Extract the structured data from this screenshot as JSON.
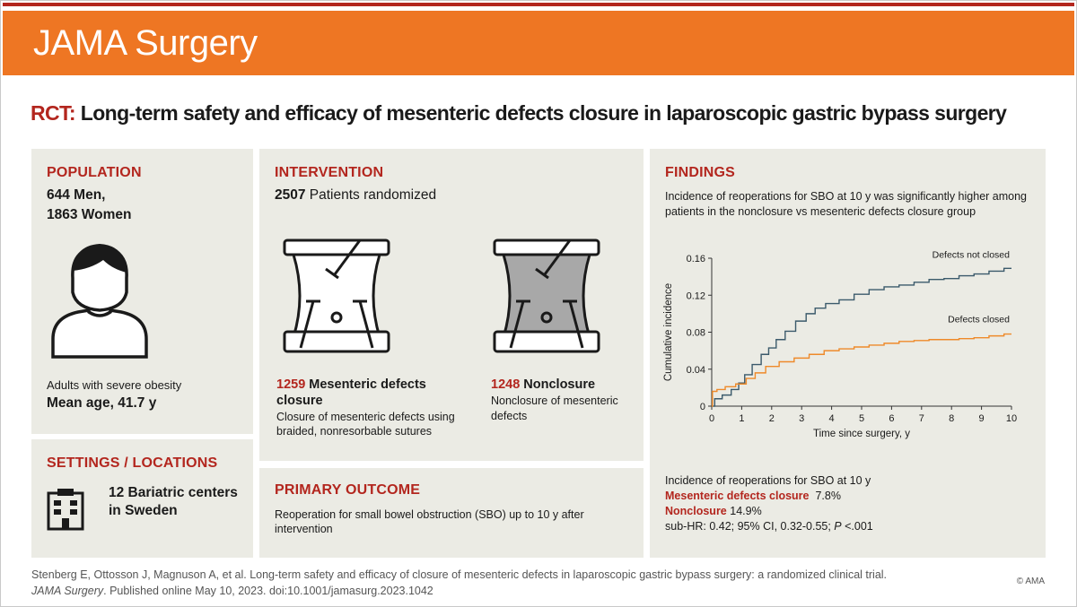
{
  "header": {
    "title": "JAMA Surgery"
  },
  "main_title": {
    "prefix": "RCT:",
    "text": " Long-term safety and efficacy of mesenteric defects closure in laparoscopic gastric bypass surgery"
  },
  "population": {
    "heading": "POPULATION",
    "men": "644 Men,",
    "women": "1863 Women",
    "description": "Adults with severe obesity",
    "mean_age": "Mean age, 41.7 y"
  },
  "settings": {
    "heading": "SETTINGS / LOCATIONS",
    "line1": "12 Bariatric centers",
    "line2": "in Sweden"
  },
  "intervention": {
    "heading": "INTERVENTION",
    "randomized_count": "2507",
    "randomized_text": " Patients randomized",
    "closure_count": "1259",
    "closure_label_a": " Mesenteric defects",
    "closure_label_b": "closure",
    "closure_desc_1": "Closure of mesenteric defects using",
    "closure_desc_2": "braided, nonresorbable sutures",
    "non_count": "1248",
    "non_label": " Nonclosure",
    "non_desc_1": "Nonclosure of mesenteric",
    "non_desc_2": "defects"
  },
  "primary_outcome": {
    "heading": "PRIMARY OUTCOME",
    "line1": "Reoperation for small bowel obstruction (SBO) up to 10 y after",
    "line2": "intervention"
  },
  "findings": {
    "heading": "FINDINGS",
    "summary_1": "Incidence of reoperations for SBO at 10 y was significantly higher among",
    "summary_2": "patients in the nonclosure vs mesenteric defects closure group",
    "result_title": "Incidence of reoperations for SBO at 10 y",
    "closure_label": "Mesenteric defects closure",
    "closure_value": "7.8%",
    "non_label": "Nonclosure",
    "non_value": "14.9%",
    "stats_a": "sub-HR: 0.42; 95% CI, 0.32-0.55; ",
    "stats_p": "P",
    "stats_b": " <.001"
  },
  "chart_data": {
    "type": "line",
    "xlabel": "Time since surgery, y",
    "ylabel": "Cumulative incidence",
    "xlim": [
      0,
      10
    ],
    "ylim": [
      0,
      0.16
    ],
    "xticks": [
      "0",
      "1",
      "2",
      "3",
      "4",
      "5",
      "6",
      "7",
      "8",
      "9",
      "10"
    ],
    "yticks": [
      "0",
      "0.04",
      "0.08",
      "0.12",
      "0.16"
    ],
    "series": [
      {
        "name": "Defects not closed",
        "color": "#3b5a6b",
        "x": [
          0,
          0.2,
          0.5,
          0.8,
          1.0,
          1.2,
          1.5,
          1.8,
          2.0,
          2.3,
          2.6,
          3.0,
          3.3,
          3.6,
          4.0,
          4.5,
          5.0,
          5.5,
          6.0,
          6.5,
          7.0,
          7.5,
          8.0,
          8.5,
          9.0,
          9.5,
          10.0
        ],
        "values": [
          0.0,
          0.008,
          0.012,
          0.018,
          0.025,
          0.034,
          0.045,
          0.056,
          0.063,
          0.072,
          0.081,
          0.092,
          0.1,
          0.106,
          0.111,
          0.115,
          0.121,
          0.126,
          0.129,
          0.131,
          0.134,
          0.137,
          0.138,
          0.141,
          0.143,
          0.146,
          0.149
        ]
      },
      {
        "name": "Defects closed",
        "color": "#ee8a2a",
        "x": [
          0,
          0.05,
          0.3,
          0.6,
          1.0,
          1.3,
          1.6,
          2.0,
          2.5,
          3.0,
          3.5,
          4.0,
          4.5,
          5.0,
          5.5,
          6.0,
          6.5,
          7.0,
          7.5,
          8.0,
          8.5,
          9.0,
          9.5,
          10.0
        ],
        "values": [
          0.0,
          0.016,
          0.018,
          0.021,
          0.024,
          0.03,
          0.036,
          0.043,
          0.048,
          0.052,
          0.056,
          0.06,
          0.062,
          0.064,
          0.066,
          0.068,
          0.07,
          0.071,
          0.072,
          0.072,
          0.073,
          0.074,
          0.076,
          0.078
        ]
      }
    ]
  }
}
